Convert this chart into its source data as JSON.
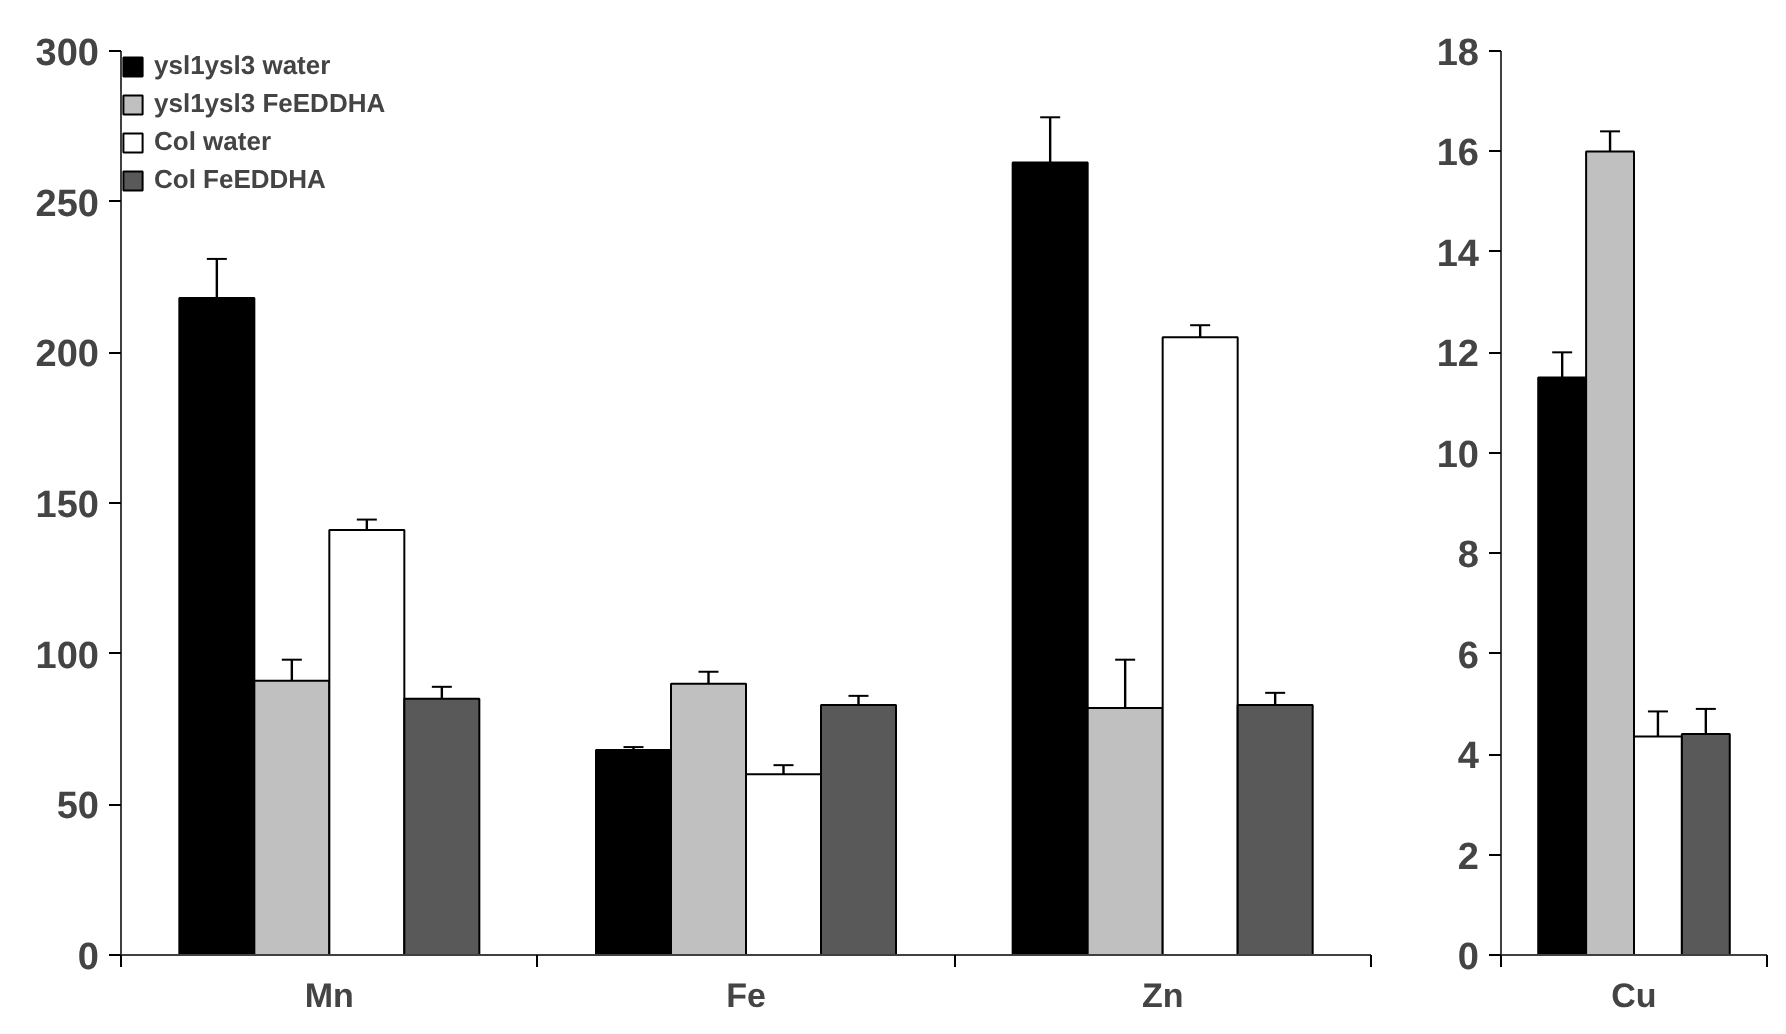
{
  "chart_data": [
    {
      "type": "bar",
      "categories": [
        "Mn",
        "Fe",
        "Zn"
      ],
      "ylim": [
        0,
        300
      ],
      "yticks": [
        0,
        50,
        100,
        150,
        200,
        250,
        300
      ],
      "grid": false,
      "legend": "top left",
      "series": [
        {
          "name": "ysl1ysl3 water",
          "color": "#000000",
          "values": [
            218,
            68,
            263
          ],
          "errors": [
            13,
            1,
            15
          ]
        },
        {
          "name": "ysl1ysl3 FeEDDHA",
          "color": "#c0c0c0",
          "values": [
            91,
            90,
            82
          ],
          "errors": [
            7,
            4,
            16
          ]
        },
        {
          "name": "Col water",
          "color": "#ffffff",
          "values": [
            141,
            60,
            205
          ],
          "errors": [
            3.5,
            3,
            4
          ]
        },
        {
          "name": "Col FeEDDHA",
          "color": "#595959",
          "values": [
            85,
            83,
            83
          ],
          "errors": [
            4,
            3,
            4
          ]
        }
      ]
    },
    {
      "type": "bar",
      "categories": [
        "Cu"
      ],
      "ylim": [
        0,
        18
      ],
      "yticks": [
        0,
        2,
        4,
        6,
        8,
        10,
        12,
        14,
        16,
        18
      ],
      "grid": false,
      "series": [
        {
          "color": "#000000",
          "values": [
            11.5
          ],
          "errors": [
            0.5
          ]
        },
        {
          "color": "#c0c0c0",
          "values": [
            16
          ],
          "errors": [
            0.4
          ]
        },
        {
          "color": "#ffffff",
          "values": [
            4.35
          ],
          "errors": [
            0.5
          ]
        },
        {
          "color": "#595959",
          "values": [
            4.4
          ],
          "errors": [
            0.5
          ]
        }
      ]
    }
  ]
}
